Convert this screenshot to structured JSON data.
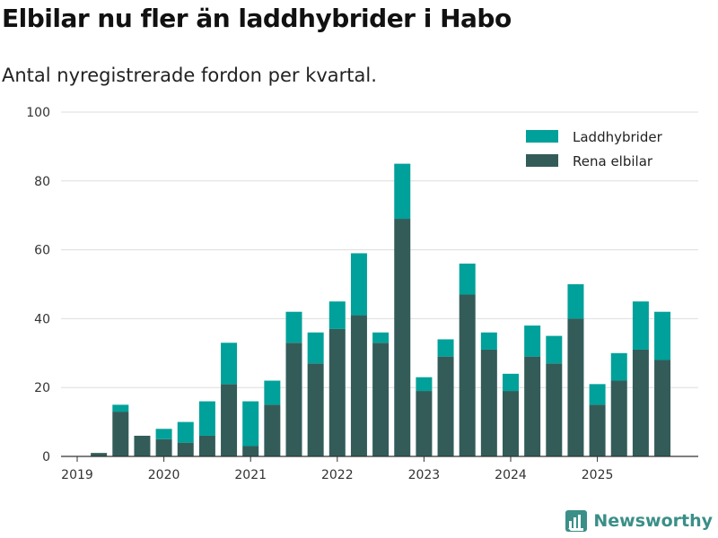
{
  "title": "Elbilar nu fler än laddhybrider i Habo",
  "subtitle": "Antal nyregistrerade fordon per kvartal.",
  "brand": "Newsworthy",
  "colors": {
    "laddhybrider": "#00a19a",
    "rena_elbilar": "#335c59",
    "grid": "#dddddd",
    "axis": "#333333"
  },
  "chart_data": {
    "type": "bar",
    "stacked": true,
    "categories": [
      "2019-Q1",
      "2019-Q2",
      "2019-Q3",
      "2019-Q4",
      "2020-Q1",
      "2020-Q2",
      "2020-Q3",
      "2020-Q4",
      "2021-Q1",
      "2021-Q2",
      "2021-Q3",
      "2021-Q4",
      "2022-Q1",
      "2022-Q2",
      "2022-Q3",
      "2022-Q4",
      "2023-Q1",
      "2023-Q2",
      "2023-Q3",
      "2023-Q4",
      "2024-Q1",
      "2024-Q2",
      "2024-Q3",
      "2024-Q4",
      "2025-Q1",
      "2025-Q2",
      "2025-Q3",
      "2025-Q4"
    ],
    "x_tick_labels": [
      "2019",
      "2020",
      "2021",
      "2022",
      "2023",
      "2024",
      "2025"
    ],
    "y_ticks": [
      0,
      20,
      40,
      60,
      80,
      100
    ],
    "ylim": [
      0,
      100
    ],
    "series": [
      {
        "name": "Rena elbilar",
        "values": [
          0,
          1,
          13,
          6,
          5,
          4,
          6,
          21,
          3,
          15,
          33,
          27,
          37,
          41,
          33,
          69,
          19,
          29,
          47,
          31,
          19,
          29,
          27,
          40,
          15,
          22,
          31,
          28
        ]
      },
      {
        "name": "Laddhybrider",
        "values": [
          0,
          0,
          2,
          0,
          3,
          6,
          10,
          12,
          13,
          7,
          9,
          9,
          8,
          18,
          3,
          16,
          4,
          5,
          9,
          5,
          5,
          9,
          8,
          10,
          6,
          8,
          14,
          14
        ]
      }
    ],
    "legend_position": "top-right",
    "grid": true
  }
}
